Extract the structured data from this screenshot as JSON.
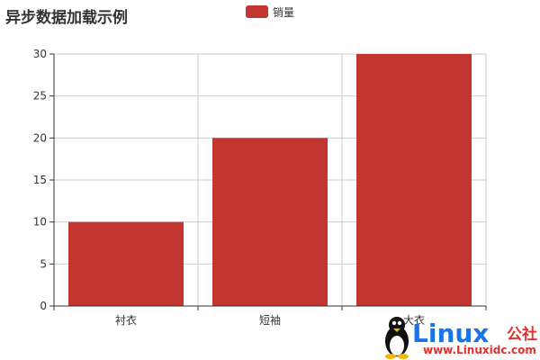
{
  "chart_data": {
    "type": "bar",
    "title": "异步数据加载示例",
    "categories": [
      "衬衣",
      "短袖",
      "大衣"
    ],
    "series": [
      {
        "name": "销量",
        "values": [
          10,
          20,
          30
        ]
      }
    ],
    "ylim": [
      0,
      30
    ],
    "yticks": [
      0,
      5,
      10,
      15,
      20,
      25,
      30
    ],
    "xlabel": "",
    "ylabel": "",
    "grid": true,
    "legend": "top-center",
    "bar_color": "#c23531",
    "grid_color": "#cccccc",
    "axis_color": "#333333"
  },
  "watermark": {
    "brand": "Linux",
    "brand_cn": "公社",
    "url": "www.Linuxidc.com"
  }
}
